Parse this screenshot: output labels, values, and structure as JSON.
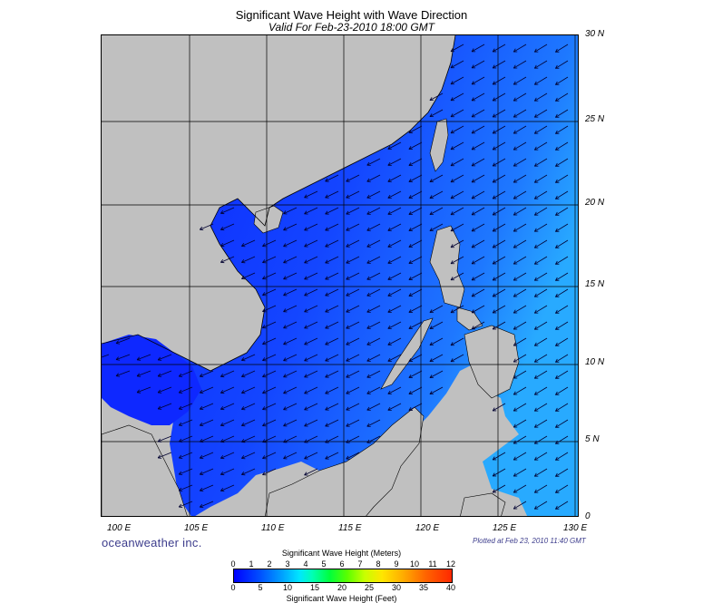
{
  "title": "Significant Wave Height with Wave Direction",
  "subtitle": "Valid For Feb-23-2010 18:00 GMT",
  "lat_labels": [
    "30 N",
    "25 N",
    "20 N",
    "15 N",
    "10 N",
    "5 N",
    "0"
  ],
  "lon_labels": [
    "100 E",
    "105 E",
    "110 E",
    "115 E",
    "120 E",
    "125 E",
    "130 E"
  ],
  "brand": "oceanweather inc.",
  "plotted": "Plotted at Feb 23, 2010 11:40 GMT",
  "colorbar": {
    "title_meters": "Significant Wave Height (Meters)",
    "title_feet": "Significant Wave Height (Feet)",
    "meters_ticks": [
      "0",
      "1",
      "2",
      "3",
      "4",
      "5",
      "6",
      "7",
      "8",
      "9",
      "10",
      "11",
      "12"
    ],
    "feet_ticks": [
      "0",
      "5",
      "10",
      "15",
      "20",
      "25",
      "30",
      "35",
      "40"
    ]
  },
  "colors": {
    "land": "#c0c0c0",
    "sea_dark": "#0a1eff",
    "sea_mid": "#1e64ff",
    "sea_light": "#28b4ff"
  },
  "map": {
    "lon_range": [
      99,
      130
    ],
    "lat_range": [
      0,
      30
    ],
    "wave_direction": "predominantly from the northeast, toward the southwest"
  }
}
